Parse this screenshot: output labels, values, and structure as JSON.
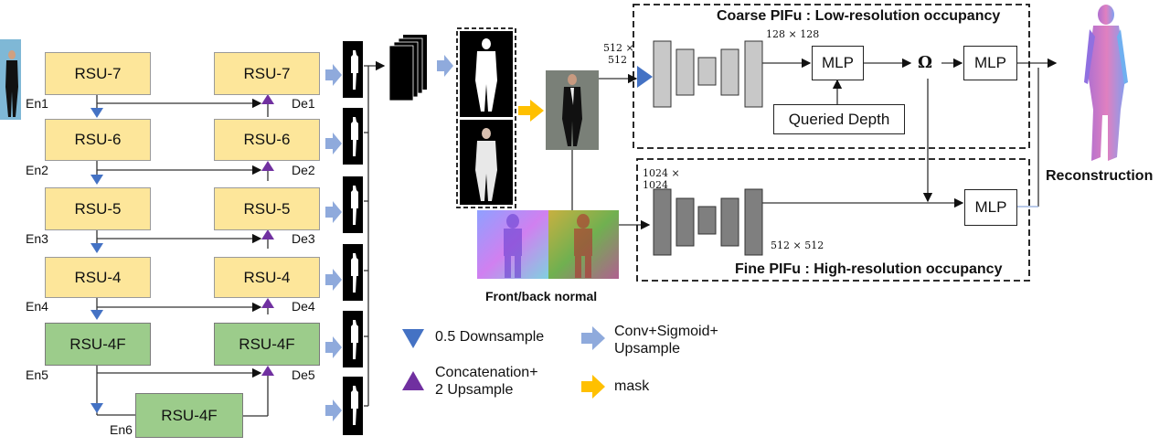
{
  "encoder": {
    "blocks": [
      "RSU-7",
      "RSU-6",
      "RSU-5",
      "RSU-4",
      "RSU-4F",
      "RSU-4F"
    ],
    "labels": [
      "En1",
      "En2",
      "En3",
      "En4",
      "En5",
      "En6"
    ]
  },
  "decoder": {
    "blocks": [
      "RSU-7",
      "RSU-6",
      "RSU-5",
      "RSU-4",
      "RSU-4F"
    ],
    "labels": [
      "De1",
      "De2",
      "De3",
      "De4",
      "De5"
    ]
  },
  "coarse": {
    "title": "Coarse PIFu : Low-resolution occupancy",
    "input_size": "512 ×\n512",
    "feature_size": "128 × 128",
    "mlp": "MLP",
    "omega": "Ω",
    "mlp2": "MLP",
    "queried_depth": "Queried Depth"
  },
  "fine": {
    "title": "Fine PIFu : High-resolution occupancy",
    "input_size": "1024 ×\n1024",
    "feature_size": "512 × 512",
    "mlp": "MLP"
  },
  "normal_caption": "Front/back normal",
  "reconstruction": "Reconstruction",
  "legend": {
    "downsample": "0.5 Downsample",
    "concat": "Concatenation+\n2 Upsample",
    "conv": "Conv+Sigmoid+\nUpsample",
    "mask": "mask"
  },
  "colors": {
    "rsu": "#fde69a",
    "rsu_f": "#9ccc8b",
    "down": "#4472c4",
    "up": "#7030a0",
    "conv_arrow": "#8faadc",
    "mask_arrow": "#ffc000",
    "coarse_enc": "#c8c8c8",
    "fine_enc": "#7f7f7f"
  }
}
